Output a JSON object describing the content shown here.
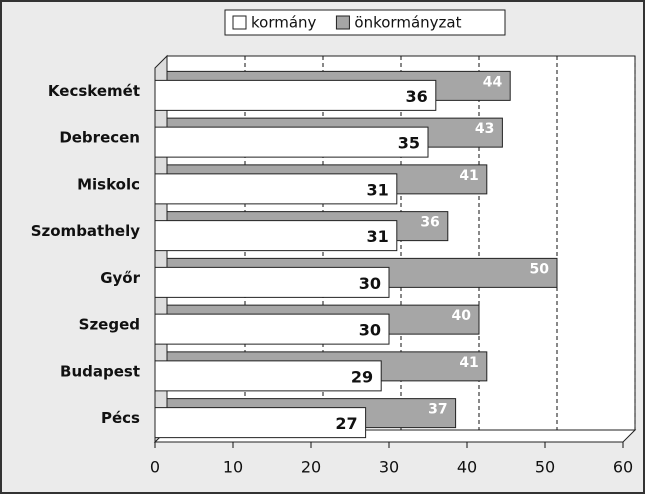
{
  "chart_data": {
    "type": "bar",
    "orientation": "horizontal",
    "categories": [
      "Kecskemét",
      "Debrecen",
      "Miskolc",
      "Szombathely",
      "Győr",
      "Szeged",
      "Budapest",
      "Pécs"
    ],
    "series": [
      {
        "name": "kormány",
        "color": "#ffffff",
        "values": [
          36,
          35,
          31,
          31,
          30,
          30,
          29,
          27
        ]
      },
      {
        "name": "önkormányzat",
        "color": "#a6a6a6",
        "values": [
          44,
          43,
          41,
          36,
          50,
          40,
          41,
          37
        ]
      }
    ],
    "xlim": [
      0,
      60
    ],
    "xticks": [
      0,
      10,
      20,
      30,
      40,
      50,
      60
    ],
    "grid": true,
    "legend": "top"
  }
}
